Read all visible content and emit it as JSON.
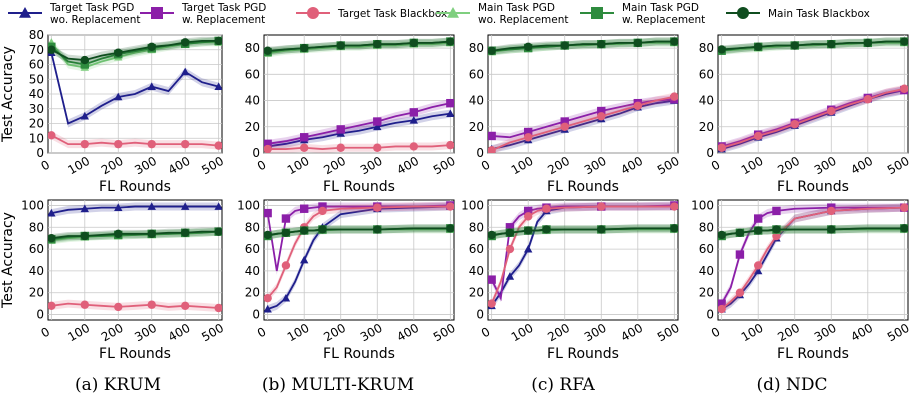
{
  "legend": [
    {
      "label_lines": [
        "Target Task PGD",
        "wo. Replacement"
      ],
      "color": "#1f1f8c",
      "marker": "triangle"
    },
    {
      "label_lines": [
        "Target Task PGD",
        "w. Replacement"
      ],
      "color": "#8b1fa8",
      "marker": "square"
    },
    {
      "label_lines": [
        "Target Task Blackbox"
      ],
      "color": "#e0607a",
      "marker": "circle"
    },
    {
      "label_lines": [
        "Main Task PGD",
        "wo. Replacement"
      ],
      "color": "#7fcf7f",
      "marker": "triangle"
    },
    {
      "label_lines": [
        "Main Task PGD",
        "w. Replacement"
      ],
      "color": "#2e8b3e",
      "marker": "square"
    },
    {
      "label_lines": [
        "Main Task Blackbox"
      ],
      "color": "#0f4d1f",
      "marker": "circle"
    }
  ],
  "captions": [
    "(a) KRUM",
    "(b) MULTI-KRUM",
    "(c) RFA",
    "(d) NDC"
  ],
  "xlabel": "FL Rounds",
  "ylabel": "Test Accuracy",
  "chart_data": [
    {
      "id": "top-krum",
      "type": "line",
      "xlabel": "FL Rounds",
      "ylabel": "Test Accuracy",
      "xlim": [
        -10,
        510
      ],
      "ylim": [
        0,
        80
      ],
      "yticks": [
        0,
        10,
        20,
        30,
        40,
        50,
        60,
        70,
        80
      ],
      "xticks": [
        0,
        100,
        200,
        300,
        400,
        500
      ],
      "grid": true,
      "x": [
        0,
        50,
        100,
        150,
        200,
        250,
        300,
        350,
        400,
        450,
        500
      ],
      "series": [
        {
          "name": "Target Task PGD wo. Replacement",
          "values": [
            68,
            20,
            25,
            32,
            38,
            40,
            45,
            42,
            55,
            48,
            45
          ]
        },
        {
          "name": "Target Task PGD w. Replacement",
          "values": [
            null,
            null,
            null,
            null,
            null,
            null,
            null,
            null,
            null,
            null,
            null
          ]
        },
        {
          "name": "Target Task Blackbox",
          "values": [
            12,
            6,
            6,
            7,
            6,
            7,
            6,
            6,
            6,
            6,
            5
          ]
        },
        {
          "name": "Main Task PGD wo. Replacement",
          "values": [
            75,
            60,
            58,
            62,
            65,
            68,
            70,
            72,
            74,
            75,
            75
          ]
        },
        {
          "name": "Main Task PGD w. Replacement",
          "values": [
            72,
            62,
            60,
            64,
            67,
            69,
            71,
            73,
            74,
            75,
            76
          ]
        },
        {
          "name": "Main Task Blackbox",
          "values": [
            70,
            64,
            63,
            66,
            68,
            70,
            72,
            73,
            75,
            76,
            76
          ]
        }
      ]
    },
    {
      "id": "top-multikrum",
      "type": "line",
      "xlim": [
        -10,
        510
      ],
      "ylim": [
        0,
        90
      ],
      "yticks": [
        0,
        20,
        40,
        60,
        80
      ],
      "xticks": [
        0,
        100,
        200,
        300,
        400,
        500
      ],
      "grid": true,
      "x": [
        0,
        50,
        100,
        150,
        200,
        250,
        300,
        350,
        400,
        450,
        500
      ],
      "series": [
        {
          "name": "Target Task PGD wo. Replacement",
          "values": [
            5,
            7,
            10,
            12,
            15,
            17,
            20,
            23,
            25,
            28,
            30
          ]
        },
        {
          "name": "Target Task PGD w. Replacement",
          "values": [
            7,
            9,
            12,
            15,
            18,
            21,
            24,
            28,
            31,
            35,
            38
          ]
        },
        {
          "name": "Target Task Blackbox",
          "values": [
            3,
            3,
            4,
            3,
            4,
            4,
            4,
            5,
            5,
            5,
            6
          ]
        },
        {
          "name": "Main Task PGD wo. Replacement",
          "values": [
            76,
            78,
            79,
            80,
            81,
            81,
            82,
            82,
            83,
            83,
            84
          ]
        },
        {
          "name": "Main Task PGD w. Replacement",
          "values": [
            77,
            79,
            80,
            81,
            82,
            82,
            83,
            83,
            84,
            84,
            85
          ]
        },
        {
          "name": "Main Task Blackbox",
          "values": [
            78,
            79,
            80,
            81,
            82,
            82,
            83,
            83,
            84,
            84,
            85
          ]
        }
      ]
    },
    {
      "id": "top-rfa",
      "type": "line",
      "xlim": [
        -10,
        510
      ],
      "ylim": [
        0,
        90
      ],
      "yticks": [
        0,
        20,
        40,
        60,
        80
      ],
      "xticks": [
        0,
        100,
        200,
        300,
        400,
        500
      ],
      "grid": true,
      "x": [
        0,
        50,
        100,
        150,
        200,
        250,
        300,
        350,
        400,
        450,
        500
      ],
      "series": [
        {
          "name": "Target Task PGD wo. Replacement",
          "values": [
            3,
            6,
            10,
            14,
            18,
            22,
            26,
            30,
            35,
            38,
            40
          ]
        },
        {
          "name": "Target Task PGD w. Replacement",
          "values": [
            13,
            12,
            16,
            20,
            24,
            28,
            32,
            35,
            38,
            40,
            41
          ]
        },
        {
          "name": "Target Task Blackbox",
          "values": [
            2,
            8,
            12,
            16,
            20,
            24,
            28,
            32,
            36,
            40,
            43
          ]
        },
        {
          "name": "Main Task PGD wo. Replacement",
          "values": [
            77,
            79,
            80,
            81,
            82,
            82,
            83,
            83,
            84,
            84,
            84
          ]
        },
        {
          "name": "Main Task PGD w. Replacement",
          "values": [
            78,
            79,
            80,
            81,
            82,
            83,
            83,
            84,
            84,
            85,
            85
          ]
        },
        {
          "name": "Main Task Blackbox",
          "values": [
            78,
            80,
            81,
            82,
            82,
            83,
            83,
            84,
            84,
            85,
            85
          ]
        }
      ]
    },
    {
      "id": "top-ndc",
      "type": "line",
      "xlim": [
        -10,
        510
      ],
      "ylim": [
        0,
        90
      ],
      "yticks": [
        0,
        20,
        40,
        60,
        80
      ],
      "xticks": [
        0,
        100,
        200,
        300,
        400,
        500
      ],
      "grid": true,
      "x": [
        0,
        50,
        100,
        150,
        200,
        250,
        300,
        350,
        400,
        450,
        500
      ],
      "series": [
        {
          "name": "Target Task PGD wo. Replacement",
          "values": [
            3,
            7,
            12,
            16,
            21,
            26,
            31,
            36,
            41,
            45,
            48
          ]
        },
        {
          "name": "Target Task PGD w. Replacement",
          "values": [
            5,
            9,
            14,
            18,
            23,
            28,
            33,
            38,
            42,
            46,
            48
          ]
        },
        {
          "name": "Target Task Blackbox",
          "values": [
            4,
            8,
            13,
            17,
            22,
            27,
            32,
            37,
            41,
            46,
            49
          ]
        },
        {
          "name": "Main Task PGD wo. Replacement",
          "values": [
            78,
            79,
            80,
            81,
            82,
            82,
            83,
            83,
            84,
            84,
            84
          ]
        },
        {
          "name": "Main Task PGD w. Replacement",
          "values": [
            78,
            80,
            81,
            82,
            82,
            83,
            83,
            84,
            84,
            85,
            85
          ]
        },
        {
          "name": "Main Task Blackbox",
          "values": [
            79,
            80,
            81,
            82,
            82,
            83,
            83,
            84,
            84,
            85,
            85
          ]
        }
      ]
    },
    {
      "id": "bot-krum",
      "type": "line",
      "xlim": [
        -10,
        510
      ],
      "ylim": [
        -5,
        105
      ],
      "yticks": [
        0,
        20,
        40,
        60,
        80,
        100
      ],
      "xticks": [
        0,
        100,
        200,
        300,
        400,
        500
      ],
      "grid": true,
      "x": [
        0,
        50,
        100,
        150,
        200,
        250,
        300,
        350,
        400,
        450,
        500
      ],
      "series": [
        {
          "name": "Target Task PGD wo. Replacement",
          "values": [
            93,
            96,
            97,
            98,
            98,
            99,
            99,
            99,
            99,
            99,
            99
          ]
        },
        {
          "name": "Target Task PGD w. Replacement",
          "values": [
            null,
            null,
            null,
            null,
            null,
            null,
            null,
            null,
            null,
            null,
            null
          ]
        },
        {
          "name": "Target Task Blackbox",
          "values": [
            8,
            10,
            9,
            8,
            7,
            8,
            9,
            7,
            8,
            7,
            6
          ]
        },
        {
          "name": "Main Task PGD wo. Replacement",
          "values": [
            68,
            70,
            71,
            72,
            72,
            73,
            73,
            74,
            74,
            75,
            76
          ]
        },
        {
          "name": "Main Task PGD w. Replacement",
          "values": [
            69,
            71,
            72,
            72,
            73,
            73,
            74,
            74,
            75,
            75,
            76
          ]
        },
        {
          "name": "Main Task Blackbox",
          "values": [
            70,
            72,
            72,
            73,
            74,
            74,
            74,
            75,
            75,
            76,
            76
          ]
        }
      ]
    },
    {
      "id": "bot-multikrum",
      "type": "line",
      "xlim": [
        -10,
        510
      ],
      "ylim": [
        -5,
        105
      ],
      "yticks": [
        0,
        20,
        40,
        60,
        80,
        100
      ],
      "xticks": [
        0,
        100,
        200,
        300,
        400,
        500
      ],
      "grid": true,
      "x": [
        0,
        25,
        50,
        75,
        100,
        125,
        150,
        200,
        300,
        400,
        500
      ],
      "series": [
        {
          "name": "Target Task PGD wo. Replacement",
          "values": [
            5,
            8,
            15,
            30,
            50,
            68,
            80,
            92,
            97,
            98,
            99
          ]
        },
        {
          "name": "Target Task PGD w. Replacement",
          "values": [
            93,
            40,
            88,
            95,
            97,
            98,
            99,
            99,
            99,
            99,
            100
          ]
        },
        {
          "name": "Target Task Blackbox",
          "values": [
            15,
            25,
            45,
            65,
            80,
            90,
            95,
            97,
            98,
            99,
            99
          ]
        },
        {
          "name": "Main Task PGD wo. Replacement",
          "values": [
            72,
            74,
            75,
            76,
            77,
            77,
            77,
            78,
            78,
            78,
            78
          ]
        },
        {
          "name": "Main Task PGD w. Replacement",
          "values": [
            72,
            74,
            75,
            76,
            77,
            77,
            78,
            78,
            78,
            79,
            79
          ]
        },
        {
          "name": "Main Task Blackbox",
          "values": [
            73,
            74,
            75,
            76,
            77,
            77,
            78,
            78,
            78,
            79,
            79
          ]
        }
      ]
    },
    {
      "id": "bot-rfa",
      "type": "line",
      "xlim": [
        -10,
        510
      ],
      "ylim": [
        -5,
        105
      ],
      "yticks": [
        0,
        20,
        40,
        60,
        80,
        100
      ],
      "xticks": [
        0,
        100,
        200,
        300,
        400,
        500
      ],
      "grid": true,
      "x": [
        0,
        25,
        50,
        75,
        100,
        125,
        150,
        200,
        300,
        400,
        500
      ],
      "series": [
        {
          "name": "Target Task PGD wo. Replacement",
          "values": [
            8,
            20,
            35,
            45,
            60,
            85,
            95,
            98,
            99,
            99,
            99
          ]
        },
        {
          "name": "Target Task PGD w. Replacement",
          "values": [
            32,
            15,
            80,
            90,
            95,
            97,
            98,
            99,
            99,
            99,
            100
          ]
        },
        {
          "name": "Target Task Blackbox",
          "values": [
            10,
            30,
            60,
            80,
            90,
            95,
            97,
            98,
            99,
            99,
            99
          ]
        },
        {
          "name": "Main Task PGD wo. Replacement",
          "values": [
            72,
            74,
            75,
            76,
            77,
            77,
            77,
            78,
            78,
            78,
            78
          ]
        },
        {
          "name": "Main Task PGD w. Replacement",
          "values": [
            72,
            74,
            75,
            76,
            77,
            77,
            78,
            78,
            78,
            79,
            79
          ]
        },
        {
          "name": "Main Task Blackbox",
          "values": [
            73,
            74,
            75,
            76,
            77,
            77,
            78,
            78,
            78,
            79,
            79
          ]
        }
      ]
    },
    {
      "id": "bot-ndc",
      "type": "line",
      "xlim": [
        -10,
        510
      ],
      "ylim": [
        -5,
        105
      ],
      "yticks": [
        0,
        20,
        40,
        60,
        80,
        100
      ],
      "xticks": [
        0,
        100,
        200,
        300,
        400,
        500
      ],
      "grid": true,
      "x": [
        0,
        25,
        50,
        75,
        100,
        125,
        150,
        200,
        300,
        400,
        500
      ],
      "series": [
        {
          "name": "Target Task PGD wo. Replacement",
          "values": [
            5,
            10,
            18,
            28,
            40,
            55,
            70,
            88,
            95,
            97,
            98
          ]
        },
        {
          "name": "Target Task PGD w. Replacement",
          "values": [
            10,
            25,
            55,
            75,
            88,
            93,
            95,
            97,
            98,
            98,
            98
          ]
        },
        {
          "name": "Target Task Blackbox",
          "values": [
            5,
            12,
            20,
            32,
            45,
            60,
            72,
            88,
            95,
            97,
            98
          ]
        },
        {
          "name": "Main Task PGD wo. Replacement",
          "values": [
            72,
            74,
            75,
            76,
            77,
            77,
            77,
            78,
            78,
            78,
            78
          ]
        },
        {
          "name": "Main Task PGD w. Replacement",
          "values": [
            72,
            74,
            75,
            76,
            77,
            77,
            78,
            78,
            78,
            79,
            79
          ]
        },
        {
          "name": "Main Task Blackbox",
          "values": [
            73,
            74,
            75,
            76,
            77,
            77,
            78,
            78,
            78,
            79,
            79
          ]
        }
      ]
    }
  ]
}
